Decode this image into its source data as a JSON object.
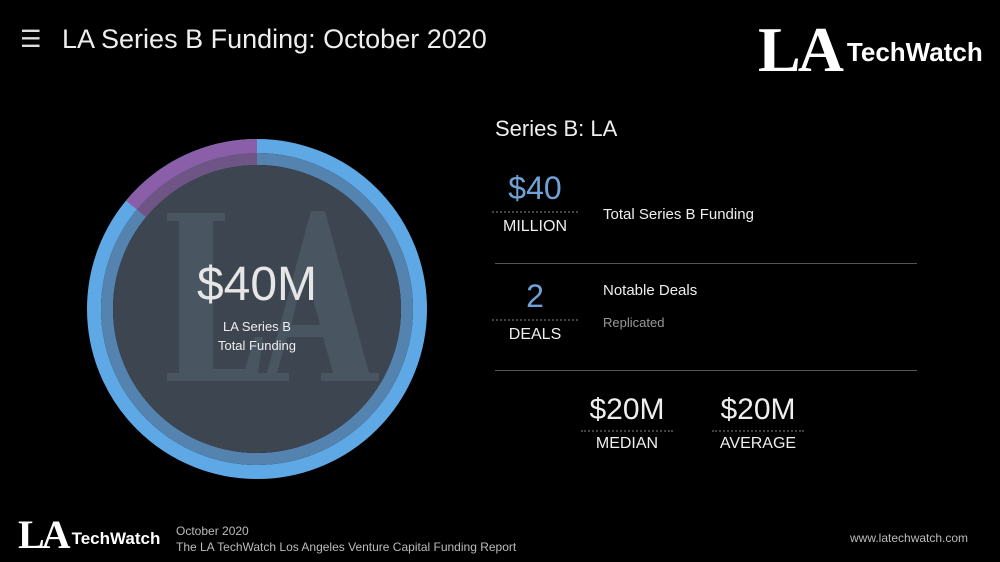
{
  "header": {
    "menu_icon": "hamburger-icon",
    "title": "LA Series B Funding: October 2020"
  },
  "logo": {
    "la": "LA",
    "techwatch": "TechWatch"
  },
  "donut": {
    "value": "$40M",
    "label_line1": "LA Series B",
    "label_line2": "Total Funding",
    "watermark": "LA",
    "segments": [
      {
        "fraction": 0.86,
        "color": "#5fa8e6"
      },
      {
        "fraction": 0.14,
        "color": "#8a5ea8"
      }
    ]
  },
  "summary": {
    "title": "Series B: LA",
    "funding": {
      "value": "$40",
      "unit": "MILLION",
      "label": "Total Series B Funding"
    },
    "deals": {
      "value": "2",
      "unit": "DEALS",
      "label": "Notable Deals",
      "note": "Replicated"
    },
    "median": {
      "value": "$20M",
      "unit": "MEDIAN"
    },
    "average": {
      "value": "$20M",
      "unit": "AVERAGE"
    }
  },
  "footer": {
    "date": "October 2020",
    "report": "The LA TechWatch Los Angeles Venture Capital Funding Report",
    "url": "www.latechwatch.com"
  }
}
